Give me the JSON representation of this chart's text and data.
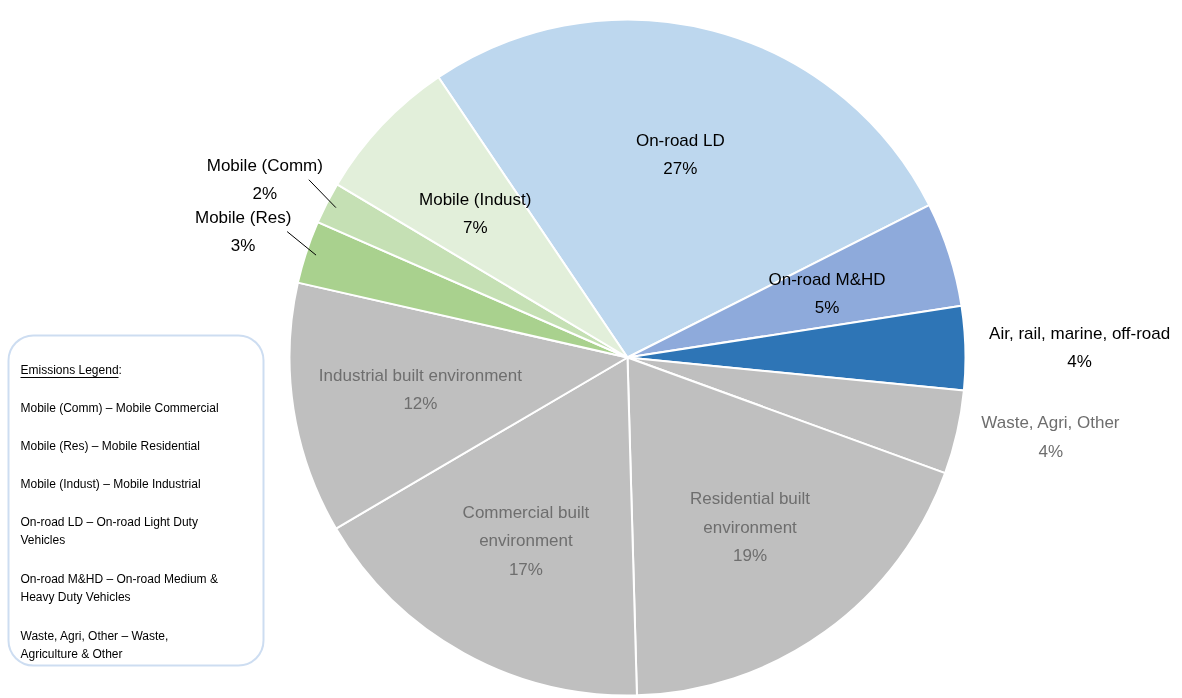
{
  "chart_data": {
    "type": "pie",
    "categories": [
      "On-road LD",
      "On-road M&HD",
      "Air, rail, marine, off-road",
      "Waste, Agri, Other",
      "Residential built\nenvironment",
      "Commercial built\nenvironment",
      "Industrial built environment",
      "Mobile (Res)",
      "Mobile (Comm)",
      "Mobile (Indust)"
    ],
    "values": [
      27,
      5,
      4,
      4,
      19,
      17,
      12,
      3,
      2,
      7
    ],
    "colors": [
      "#bdd7ee",
      "#8eaadb",
      "#2e75b6",
      "#bfbfbf",
      "#bfbfbf",
      "#bfbfbf",
      "#bfbfbf",
      "#a9d18e",
      "#c5e0b4",
      "#e2efda"
    ],
    "value_labels": [
      "27%",
      "5%",
      "4%",
      "4%",
      "19%",
      "17%",
      "12%",
      "3%",
      "2%",
      "7%"
    ],
    "annotations": [
      "Emissions Legend:",
      "Mobile (Comm) – Mobile Commercial",
      "Mobile (Res) – Mobile Residential",
      "Mobile (Indust) – Mobile Industrial",
      "On-road LD – On-road Light Duty\n          Vehicles",
      "On-road M&HD – On-road Medium &\n          Heavy Duty Vehicles",
      "Waste, Agri, Other – Waste,\n                    Agriculture & Other"
    ]
  }
}
